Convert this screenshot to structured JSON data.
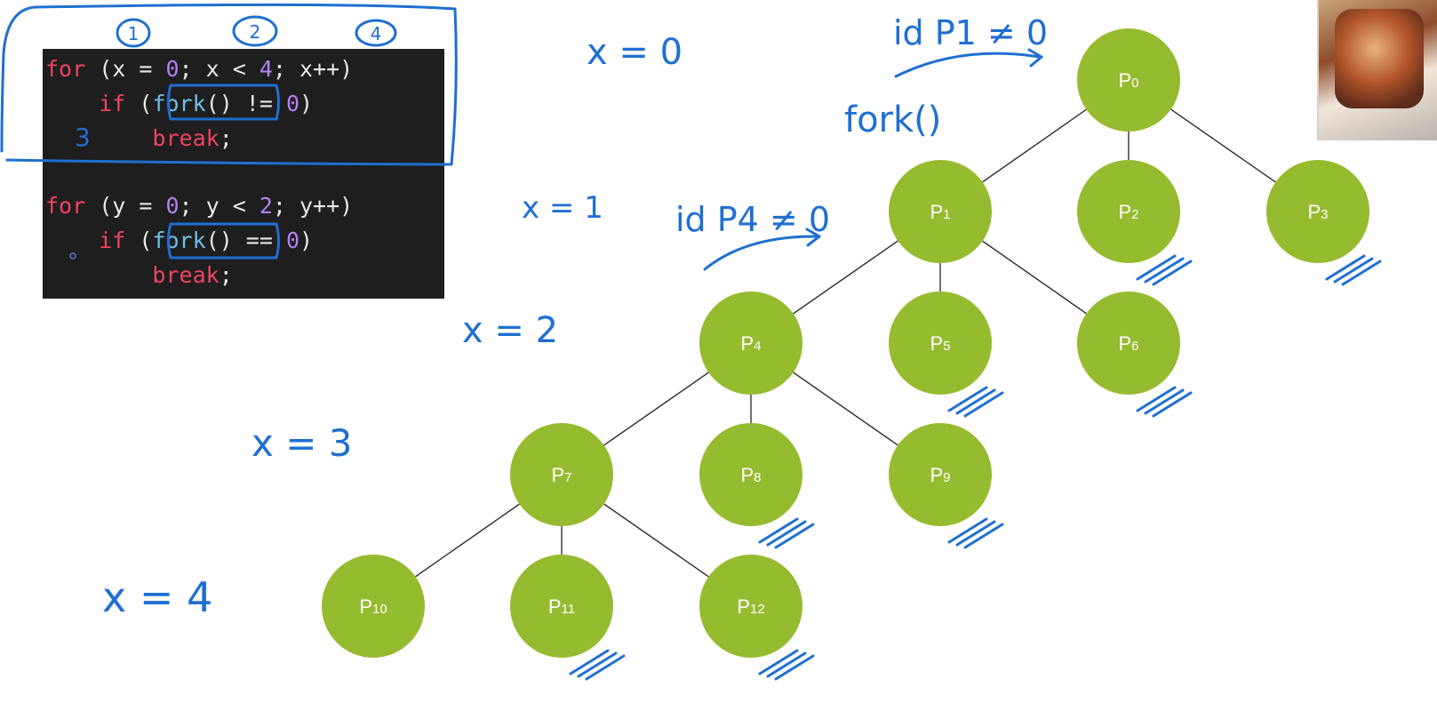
{
  "code": {
    "lines": [
      [
        {
          "t": "for",
          "c": "kw"
        },
        {
          "t": " (x = "
        },
        {
          "t": "0",
          "c": "num"
        },
        {
          "t": "; x < "
        },
        {
          "t": "4",
          "c": "num"
        },
        {
          "t": "; x++)"
        }
      ],
      [
        {
          "t": "    "
        },
        {
          "t": "if",
          "c": "kw"
        },
        {
          "t": " ("
        },
        {
          "t": "fork",
          "c": "fn"
        },
        {
          "t": "() != "
        },
        {
          "t": "0",
          "c": "num"
        },
        {
          "t": ")"
        }
      ],
      [
        {
          "t": "        "
        },
        {
          "t": "break",
          "c": "kw"
        },
        {
          "t": ";"
        }
      ],
      [],
      [
        {
          "t": "for",
          "c": "kw"
        },
        {
          "t": " (y = "
        },
        {
          "t": "0",
          "c": "num"
        },
        {
          "t": "; y < "
        },
        {
          "t": "2",
          "c": "num"
        },
        {
          "t": "; y++)"
        }
      ],
      [
        {
          "t": "    "
        },
        {
          "t": "if",
          "c": "kw"
        },
        {
          "t": " ("
        },
        {
          "t": "fork",
          "c": "fn"
        },
        {
          "t": "() == "
        },
        {
          "t": "0",
          "c": "num"
        },
        {
          "t": ")"
        }
      ],
      [
        {
          "t": "        "
        },
        {
          "t": "break",
          "c": "kw"
        },
        {
          "t": ";"
        }
      ]
    ]
  },
  "annotations": {
    "circled_1": "1",
    "circled_2": "2",
    "circled_4": "4",
    "brace_close": "3",
    "x0": "x = 0",
    "x1": "x = 1",
    "x2": "x = 2",
    "x3": "x = 3",
    "x4": "x = 4",
    "id_p1": "id P1 ≠ 0",
    "fork_call": "fork()",
    "id_p4": "id P4 ≠ 0"
  },
  "colors": {
    "node_fill": "#95bb2f",
    "ink": "#1f6fd1",
    "code_bg": "#1e1e1e"
  },
  "tree": {
    "nodes": [
      {
        "id": "P0",
        "main": "P",
        "sub": "0"
      },
      {
        "id": "P1",
        "main": "P",
        "sub": "1"
      },
      {
        "id": "P2",
        "main": "P",
        "sub": "2"
      },
      {
        "id": "P3",
        "main": "P",
        "sub": "3"
      },
      {
        "id": "P4",
        "main": "P",
        "sub": "4"
      },
      {
        "id": "P5",
        "main": "P",
        "sub": "5"
      },
      {
        "id": "P6",
        "main": "P",
        "sub": "6"
      },
      {
        "id": "P7",
        "main": "P",
        "sub": "7"
      },
      {
        "id": "P8",
        "main": "P",
        "sub": "8"
      },
      {
        "id": "P9",
        "main": "P",
        "sub": "9"
      },
      {
        "id": "P10",
        "main": "P",
        "sub": "10"
      },
      {
        "id": "P11",
        "main": "P",
        "sub": "11"
      },
      {
        "id": "P12",
        "main": "P",
        "sub": "12"
      }
    ],
    "edges": [
      [
        "P0",
        "P1"
      ],
      [
        "P0",
        "P2"
      ],
      [
        "P0",
        "P3"
      ],
      [
        "P1",
        "P4"
      ],
      [
        "P1",
        "P5"
      ],
      [
        "P1",
        "P6"
      ],
      [
        "P4",
        "P7"
      ],
      [
        "P4",
        "P8"
      ],
      [
        "P4",
        "P9"
      ],
      [
        "P7",
        "P10"
      ],
      [
        "P7",
        "P11"
      ],
      [
        "P7",
        "P12"
      ]
    ],
    "terminated": [
      "P2",
      "P3",
      "P5",
      "P6",
      "P8",
      "P9",
      "P11",
      "P12"
    ]
  }
}
